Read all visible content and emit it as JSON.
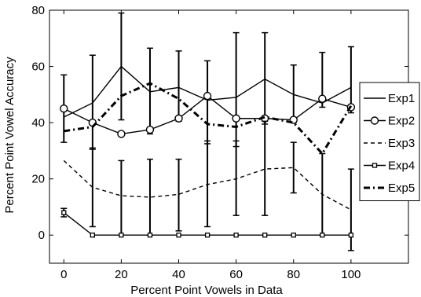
{
  "chart_data": {
    "type": "line",
    "title": "",
    "xlabel": "Percent Point Vowels in Data",
    "ylabel": "Percent Point Vowel Accuracy",
    "xlim": [
      -5,
      120
    ],
    "ylim": [
      -10,
      80
    ],
    "xticks": [
      0,
      20,
      40,
      60,
      80,
      100
    ],
    "yticks": [
      0,
      20,
      40,
      60,
      80
    ],
    "grid": false,
    "legend_position": "right",
    "x": [
      0,
      10,
      20,
      30,
      40,
      50,
      60,
      70,
      80,
      90,
      100
    ],
    "series": [
      {
        "name": "Exp1",
        "style": "solid",
        "marker": "none",
        "color": "#000000",
        "values": [
          42,
          47,
          60,
          51,
          52.5,
          48,
          49,
          55.5,
          50,
          47,
          52.5
        ],
        "error_low": [],
        "error_high": []
      },
      {
        "name": "Exp2",
        "style": "solid",
        "marker": "circle",
        "color": "#000000",
        "values": [
          45,
          40,
          36,
          37.5,
          41.5,
          49.5,
          41.5,
          41.5,
          41,
          48.5,
          45.5
        ],
        "error_low": [
          33,
          30.5,
          41,
          36,
          40.5,
          32.5,
          31.5,
          39.5,
          40,
          45.5,
          43.5
        ],
        "error_high": [
          57,
          64,
          79,
          66.5,
          65.5,
          62,
          72,
          72,
          60.5,
          65,
          67
        ]
      },
      {
        "name": "Exp3",
        "style": "dashed",
        "marker": "none",
        "color": "#000000",
        "values": [
          26.5,
          17,
          14,
          13.5,
          14.5,
          18,
          20,
          23.5,
          24,
          14.5,
          9
        ],
        "error_low": [
          26.5,
          3,
          0,
          0,
          1.5,
          3,
          7,
          7,
          15,
          0,
          -5.5
        ],
        "error_high": [
          26.5,
          31,
          26.5,
          27,
          27,
          33.5,
          33.5,
          40.5,
          33,
          29,
          23.5
        ]
      },
      {
        "name": "Exp4",
        "style": "solid",
        "marker": "square",
        "color": "#000000",
        "values": [
          8,
          0,
          0,
          0,
          0,
          0,
          0,
          0,
          0,
          0,
          0
        ],
        "error_low": [
          6.5,
          0,
          0,
          0,
          0,
          0,
          0,
          0,
          0,
          0,
          0
        ],
        "error_high": [
          9.5,
          0,
          0,
          0,
          0,
          0,
          0,
          0,
          0,
          0,
          0
        ]
      },
      {
        "name": "Exp5",
        "style": "dashdot",
        "marker": "none",
        "color": "#000000",
        "values": [
          37,
          38.5,
          49.5,
          54,
          48.5,
          39.5,
          38.5,
          42,
          40,
          29,
          46
        ],
        "error_low": [],
        "error_high": []
      }
    ]
  }
}
